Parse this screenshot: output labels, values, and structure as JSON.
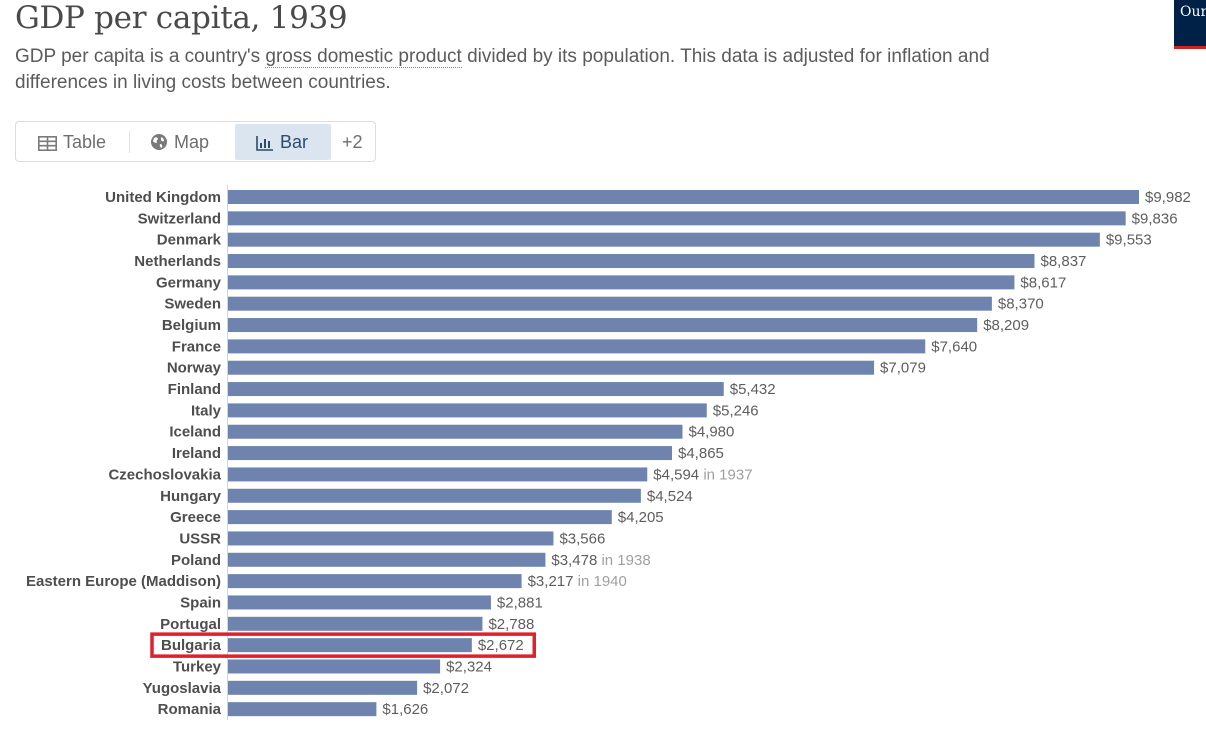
{
  "header": {
    "title": "GDP per capita, 1939",
    "subtitle_before": "GDP per capita is a country's ",
    "subtitle_term": "gross domestic product",
    "subtitle_after": " divided by its population. This data is adjusted for inflation and differences in living costs between countries.",
    "logo_text": "Our in"
  },
  "tabs": [
    {
      "label": "Table",
      "icon": "table-icon"
    },
    {
      "label": "Map",
      "icon": "globe-icon"
    },
    {
      "label": "Bar",
      "icon": "bar-chart-icon",
      "active": true
    },
    {
      "label": "+2"
    }
  ],
  "chart_data": {
    "type": "bar",
    "orientation": "horizontal",
    "title": "GDP per capita, 1939",
    "bar_color": "#6e84ae",
    "highlight_color": "#e0212b",
    "highlighted": "Bulgaria",
    "categories": [
      "United Kingdom",
      "Switzerland",
      "Denmark",
      "Netherlands",
      "Germany",
      "Sweden",
      "Belgium",
      "France",
      "Norway",
      "Finland",
      "Italy",
      "Iceland",
      "Ireland",
      "Czechoslovakia",
      "Hungary",
      "Greece",
      "USSR",
      "Poland",
      "Eastern Europe (Maddison)",
      "Spain",
      "Portugal",
      "Bulgaria",
      "Turkey",
      "Yugoslavia",
      "Romania"
    ],
    "values": [
      9982,
      9836,
      9553,
      8837,
      8617,
      8370,
      8209,
      7640,
      7079,
      5432,
      5246,
      4980,
      4865,
      4594,
      4524,
      4205,
      3566,
      3478,
      3217,
      2881,
      2788,
      2672,
      2324,
      2072,
      1626
    ],
    "labels": [
      "$9,982",
      "$9,836",
      "$9,553",
      "$8,837",
      "$8,617",
      "$8,370",
      "$8,209",
      "$7,640",
      "$7,079",
      "$5,432",
      "$5,246",
      "$4,980",
      "$4,865",
      "$4,594",
      "$4,524",
      "$4,205",
      "$3,566",
      "$3,478",
      "$3,217",
      "$2,881",
      "$2,788",
      "$2,672",
      "$2,324",
      "$2,072",
      "$1,626"
    ],
    "notes": [
      "",
      "",
      "",
      "",
      "",
      "",
      "",
      "",
      "",
      "",
      "",
      "",
      "",
      "in 1937",
      "",
      "",
      "",
      "in 1938",
      "in 1940",
      "",
      "",
      "",
      "",
      "",
      ""
    ],
    "xlim": [
      0,
      9982
    ]
  }
}
